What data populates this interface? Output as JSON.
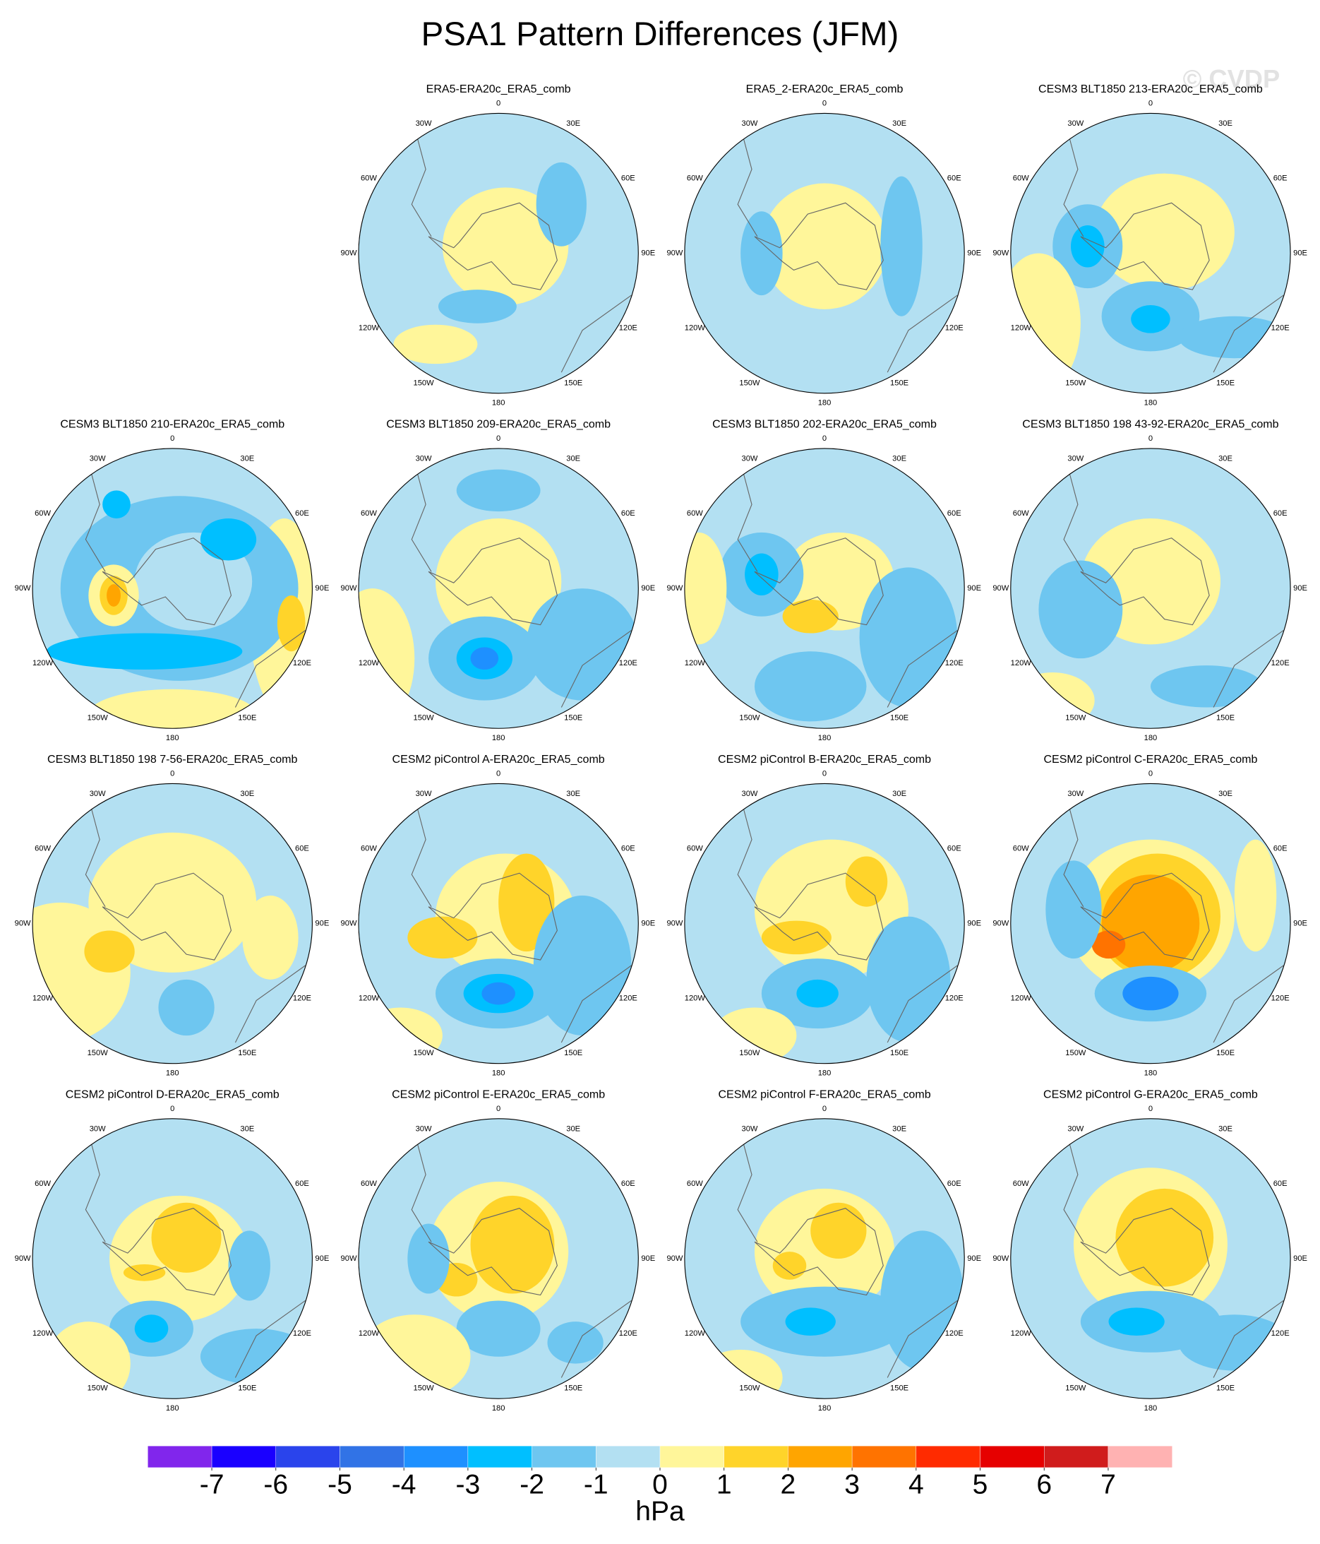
{
  "title": "PSA1 Pattern Differences (JFM)",
  "watermark": "© CVDP",
  "longitude_labels": [
    "0",
    "30E",
    "60E",
    "90E",
    "120E",
    "150E",
    "180",
    "150W",
    "120W",
    "90W",
    "60W",
    "30W"
  ],
  "panels": [
    {
      "title": "ERA5-ERA20c_ERA5_comb"
    },
    {
      "title": "ERA5_2-ERA20c_ERA5_comb"
    },
    {
      "title": "CESM3 BLT1850 213-ERA20c_ERA5_comb"
    },
    {
      "title": "CESM3 BLT1850 210-ERA20c_ERA5_comb"
    },
    {
      "title": "CESM3 BLT1850 209-ERA20c_ERA5_comb"
    },
    {
      "title": "CESM3 BLT1850 202-ERA20c_ERA5_comb"
    },
    {
      "title": "CESM3 BLT1850 198 43-92-ERA20c_ERA5_comb"
    },
    {
      "title": "CESM3 BLT1850 198 7-56-ERA20c_ERA5_comb"
    },
    {
      "title": "CESM2 piControl A-ERA20c_ERA5_comb"
    },
    {
      "title": "CESM2 piControl B-ERA20c_ERA5_comb"
    },
    {
      "title": "CESM2 piControl C-ERA20c_ERA5_comb"
    },
    {
      "title": "CESM2 piControl D-ERA20c_ERA5_comb"
    },
    {
      "title": "CESM2 piControl E-ERA20c_ERA5_comb"
    },
    {
      "title": "CESM2 piControl F-ERA20c_ERA5_comb"
    },
    {
      "title": "CESM2 piControl G-ERA20c_ERA5_comb"
    }
  ],
  "colorbar": {
    "levels": [
      -7,
      -6,
      -5,
      -4,
      -3,
      -2,
      -1,
      0,
      1,
      2,
      3,
      4,
      5,
      6,
      7
    ],
    "colors": [
      "#8126ec",
      "#1a00ff",
      "#2a44ec",
      "#3173e6",
      "#1e90ff",
      "#00bfff",
      "#6ec6f0",
      "#b3e0f2",
      "#fff69a",
      "#ffd42a",
      "#ffa500",
      "#ff7300",
      "#ff2b00",
      "#e60000",
      "#d01c1c",
      "#ffb2b2"
    ],
    "units": "hPa"
  }
}
